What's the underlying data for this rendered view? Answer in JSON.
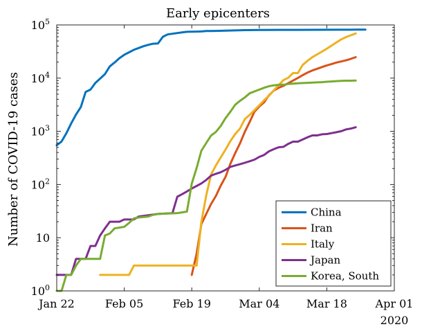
{
  "chart_data": {
    "type": "line",
    "title": "Early epicenters",
    "xlabel": "",
    "ylabel": "Number of COVID-19 cases",
    "yscale": "log",
    "ylim": [
      1,
      100000
    ],
    "xlim": [
      "2020-01-22",
      "2020-04-01"
    ],
    "x_ticks": [
      "Jan 22",
      "Feb 05",
      "Feb 19",
      "Mar 04",
      "Mar 18",
      "Apr 01"
    ],
    "x_year_label": "2020",
    "y_ticks": [
      {
        "value": 1,
        "base": "10",
        "exp": "0"
      },
      {
        "value": 10,
        "base": "10",
        "exp": ""
      },
      {
        "value": 100,
        "base": "10",
        "exp": "2"
      },
      {
        "value": 1000,
        "base": "10",
        "exp": "3"
      },
      {
        "value": 10000,
        "base": "10",
        "exp": "4"
      },
      {
        "value": 100000,
        "base": "10",
        "exp": "5"
      }
    ],
    "grid": false,
    "legend_position": "bottom-right",
    "series": [
      {
        "name": "China",
        "color": "#0072BD",
        "points": [
          [
            "2020-01-22",
            548
          ],
          [
            "2020-01-23",
            643
          ],
          [
            "2020-01-24",
            920
          ],
          [
            "2020-01-25",
            1406
          ],
          [
            "2020-01-26",
            2075
          ],
          [
            "2020-01-27",
            2877
          ],
          [
            "2020-01-28",
            5509
          ],
          [
            "2020-01-29",
            6087
          ],
          [
            "2020-01-30",
            8141
          ],
          [
            "2020-01-31",
            9802
          ],
          [
            "2020-02-01",
            11891
          ],
          [
            "2020-02-02",
            16630
          ],
          [
            "2020-02-03",
            19716
          ],
          [
            "2020-02-04",
            23707
          ],
          [
            "2020-02-05",
            27440
          ],
          [
            "2020-02-06",
            30587
          ],
          [
            "2020-02-07",
            34110
          ],
          [
            "2020-02-08",
            36814
          ],
          [
            "2020-02-09",
            39829
          ],
          [
            "2020-02-10",
            42354
          ],
          [
            "2020-02-11",
            44386
          ],
          [
            "2020-02-12",
            44759
          ],
          [
            "2020-02-13",
            59895
          ],
          [
            "2020-02-14",
            66358
          ],
          [
            "2020-02-15",
            68413
          ],
          [
            "2020-02-16",
            70513
          ],
          [
            "2020-02-17",
            72434
          ],
          [
            "2020-02-18",
            74211
          ],
          [
            "2020-02-19",
            74619
          ],
          [
            "2020-02-20",
            75077
          ],
          [
            "2020-02-21",
            75550
          ],
          [
            "2020-02-22",
            77001
          ],
          [
            "2020-02-23",
            77022
          ],
          [
            "2020-02-24",
            77241
          ],
          [
            "2020-02-26",
            78166
          ],
          [
            "2020-02-28",
            78824
          ],
          [
            "2020-03-01",
            79932
          ],
          [
            "2020-03-04",
            80422
          ],
          [
            "2020-03-08",
            80735
          ],
          [
            "2020-03-12",
            80932
          ],
          [
            "2020-03-16",
            81033
          ],
          [
            "2020-03-20",
            81250
          ],
          [
            "2020-03-24",
            81591
          ],
          [
            "2020-03-26",
            81782
          ]
        ]
      },
      {
        "name": "Iran",
        "color": "#D95319",
        "points": [
          [
            "2020-02-19",
            2
          ],
          [
            "2020-02-20",
            5
          ],
          [
            "2020-02-21",
            18
          ],
          [
            "2020-02-22",
            28
          ],
          [
            "2020-02-23",
            43
          ],
          [
            "2020-02-24",
            61
          ],
          [
            "2020-02-25",
            95
          ],
          [
            "2020-02-26",
            139
          ],
          [
            "2020-02-27",
            245
          ],
          [
            "2020-02-28",
            388
          ],
          [
            "2020-02-29",
            593
          ],
          [
            "2020-03-01",
            978
          ],
          [
            "2020-03-02",
            1501
          ],
          [
            "2020-03-03",
            2336
          ],
          [
            "2020-03-04",
            2922
          ],
          [
            "2020-03-05",
            3513
          ],
          [
            "2020-03-06",
            4747
          ],
          [
            "2020-03-07",
            5823
          ],
          [
            "2020-03-08",
            6566
          ],
          [
            "2020-03-09",
            7161
          ],
          [
            "2020-03-10",
            8042
          ],
          [
            "2020-03-11",
            9000
          ],
          [
            "2020-03-12",
            10075
          ],
          [
            "2020-03-13",
            11364
          ],
          [
            "2020-03-14",
            12729
          ],
          [
            "2020-03-15",
            13938
          ],
          [
            "2020-03-16",
            14991
          ],
          [
            "2020-03-17",
            16169
          ],
          [
            "2020-03-18",
            17361
          ],
          [
            "2020-03-19",
            18407
          ],
          [
            "2020-03-20",
            19644
          ],
          [
            "2020-03-21",
            20610
          ],
          [
            "2020-03-22",
            21638
          ],
          [
            "2020-03-23",
            23049
          ],
          [
            "2020-03-24",
            24811
          ]
        ]
      },
      {
        "name": "Italy",
        "color": "#EDB120",
        "points": [
          [
            "2020-01-31",
            2
          ],
          [
            "2020-02-06",
            2
          ],
          [
            "2020-02-07",
            3
          ],
          [
            "2020-02-20",
            3
          ],
          [
            "2020-02-21",
            20
          ],
          [
            "2020-02-22",
            62
          ],
          [
            "2020-02-23",
            155
          ],
          [
            "2020-02-24",
            229
          ],
          [
            "2020-02-25",
            322
          ],
          [
            "2020-02-26",
            453
          ],
          [
            "2020-02-27",
            655
          ],
          [
            "2020-02-28",
            888
          ],
          [
            "2020-02-29",
            1128
          ],
          [
            "2020-03-01",
            1694
          ],
          [
            "2020-03-02",
            2036
          ],
          [
            "2020-03-03",
            2502
          ],
          [
            "2020-03-04",
            3089
          ],
          [
            "2020-03-05",
            3858
          ],
          [
            "2020-03-06",
            4636
          ],
          [
            "2020-03-07",
            5883
          ],
          [
            "2020-03-08",
            7375
          ],
          [
            "2020-03-09",
            9172
          ],
          [
            "2020-03-10",
            10149
          ],
          [
            "2020-03-11",
            12462
          ],
          [
            "2020-03-12",
            12462
          ],
          [
            "2020-03-13",
            17660
          ],
          [
            "2020-03-14",
            21157
          ],
          [
            "2020-03-15",
            24747
          ],
          [
            "2020-03-16",
            27980
          ],
          [
            "2020-03-17",
            31506
          ],
          [
            "2020-03-18",
            35713
          ],
          [
            "2020-03-19",
            41035
          ],
          [
            "2020-03-20",
            47021
          ],
          [
            "2020-03-21",
            53578
          ],
          [
            "2020-03-22",
            59138
          ],
          [
            "2020-03-23",
            63927
          ],
          [
            "2020-03-24",
            69176
          ]
        ]
      },
      {
        "name": "Japan",
        "color": "#7E2F8E",
        "points": [
          [
            "2020-01-22",
            2
          ],
          [
            "2020-01-25",
            2
          ],
          [
            "2020-01-26",
            4
          ],
          [
            "2020-01-28",
            4
          ],
          [
            "2020-01-29",
            7
          ],
          [
            "2020-01-30",
            7
          ],
          [
            "2020-01-31",
            11
          ],
          [
            "2020-02-01",
            15
          ],
          [
            "2020-02-02",
            20
          ],
          [
            "2020-02-04",
            20
          ],
          [
            "2020-02-05",
            22
          ],
          [
            "2020-02-07",
            22
          ],
          [
            "2020-02-08",
            25
          ],
          [
            "2020-02-12",
            28
          ],
          [
            "2020-02-15",
            29
          ],
          [
            "2020-02-16",
            59
          ],
          [
            "2020-02-17",
            66
          ],
          [
            "2020-02-18",
            74
          ],
          [
            "2020-02-19",
            84
          ],
          [
            "2020-02-20",
            94
          ],
          [
            "2020-02-21",
            105
          ],
          [
            "2020-02-22",
            122
          ],
          [
            "2020-02-23",
            147
          ],
          [
            "2020-02-24",
            159
          ],
          [
            "2020-02-25",
            170
          ],
          [
            "2020-02-26",
            189
          ],
          [
            "2020-02-27",
            214
          ],
          [
            "2020-02-28",
            228
          ],
          [
            "2020-02-29",
            241
          ],
          [
            "2020-03-01",
            256
          ],
          [
            "2020-03-02",
            274
          ],
          [
            "2020-03-03",
            293
          ],
          [
            "2020-03-04",
            331
          ],
          [
            "2020-03-05",
            360
          ],
          [
            "2020-03-06",
            420
          ],
          [
            "2020-03-07",
            461
          ],
          [
            "2020-03-08",
            502
          ],
          [
            "2020-03-09",
            511
          ],
          [
            "2020-03-10",
            581
          ],
          [
            "2020-03-11",
            639
          ],
          [
            "2020-03-12",
            639
          ],
          [
            "2020-03-13",
            701
          ],
          [
            "2020-03-14",
            773
          ],
          [
            "2020-03-15",
            839
          ],
          [
            "2020-03-16",
            839
          ],
          [
            "2020-03-17",
            878
          ],
          [
            "2020-03-18",
            889
          ],
          [
            "2020-03-19",
            924
          ],
          [
            "2020-03-20",
            963
          ],
          [
            "2020-03-21",
            1007
          ],
          [
            "2020-03-22",
            1086
          ],
          [
            "2020-03-23",
            1128
          ],
          [
            "2020-03-24",
            1193
          ]
        ]
      },
      {
        "name": "Korea, South",
        "color": "#77AC30",
        "points": [
          [
            "2020-01-22",
            1
          ],
          [
            "2020-01-23",
            1
          ],
          [
            "2020-01-24",
            2
          ],
          [
            "2020-01-25",
            2
          ],
          [
            "2020-01-26",
            3
          ],
          [
            "2020-01-27",
            4
          ],
          [
            "2020-01-31",
            4
          ],
          [
            "2020-02-01",
            11
          ],
          [
            "2020-02-02",
            12
          ],
          [
            "2020-02-03",
            15
          ],
          [
            "2020-02-05",
            16
          ],
          [
            "2020-02-06",
            19
          ],
          [
            "2020-02-07",
            23
          ],
          [
            "2020-02-08",
            24
          ],
          [
            "2020-02-10",
            25
          ],
          [
            "2020-02-11",
            27
          ],
          [
            "2020-02-12",
            28
          ],
          [
            "2020-02-16",
            29
          ],
          [
            "2020-02-17",
            30
          ],
          [
            "2020-02-18",
            31
          ],
          [
            "2020-02-19",
            104
          ],
          [
            "2020-02-20",
            204
          ],
          [
            "2020-02-21",
            433
          ],
          [
            "2020-02-22",
            602
          ],
          [
            "2020-02-23",
            833
          ],
          [
            "2020-02-24",
            977
          ],
          [
            "2020-02-25",
            1261
          ],
          [
            "2020-02-26",
            1766
          ],
          [
            "2020-02-27",
            2337
          ],
          [
            "2020-02-28",
            3150
          ],
          [
            "2020-02-29",
            3736
          ],
          [
            "2020-03-01",
            4335
          ],
          [
            "2020-03-02",
            5186
          ],
          [
            "2020-03-03",
            5621
          ],
          [
            "2020-03-04",
            6088
          ],
          [
            "2020-03-05",
            6593
          ],
          [
            "2020-03-06",
            7041
          ],
          [
            "2020-03-07",
            7314
          ],
          [
            "2020-03-08",
            7478
          ],
          [
            "2020-03-09",
            7513
          ],
          [
            "2020-03-10",
            7755
          ],
          [
            "2020-03-11",
            7869
          ],
          [
            "2020-03-12",
            7979
          ],
          [
            "2020-03-13",
            8086
          ],
          [
            "2020-03-14",
            8162
          ],
          [
            "2020-03-15",
            8236
          ],
          [
            "2020-03-16",
            8320
          ],
          [
            "2020-03-17",
            8413
          ],
          [
            "2020-03-18",
            8565
          ],
          [
            "2020-03-19",
            8652
          ],
          [
            "2020-03-20",
            8799
          ],
          [
            "2020-03-21",
            8897
          ],
          [
            "2020-03-22",
            8961
          ],
          [
            "2020-03-23",
            8961
          ],
          [
            "2020-03-24",
            9037
          ]
        ]
      }
    ]
  }
}
